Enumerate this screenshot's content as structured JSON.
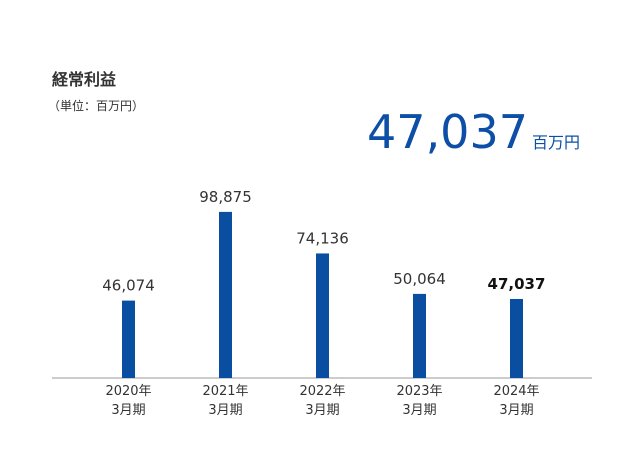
{
  "chart_data": {
    "type": "bar",
    "title": "経常利益",
    "subtitle": "（単位：百万円）",
    "highlight": {
      "value": "47,037",
      "unit": "百万円"
    },
    "categories": [
      "2020年\n3月期",
      "2021年\n3月期",
      "2022年\n3月期",
      "2023年\n3月期",
      "2024年\n3月期"
    ],
    "values": [
      46074,
      98875,
      74136,
      50064,
      47037
    ],
    "value_labels": [
      "46,074",
      "98,875",
      "74,136",
      "50,064",
      "47,037"
    ],
    "color": "#0a4ea2",
    "ylim": [
      0,
      100000
    ]
  }
}
